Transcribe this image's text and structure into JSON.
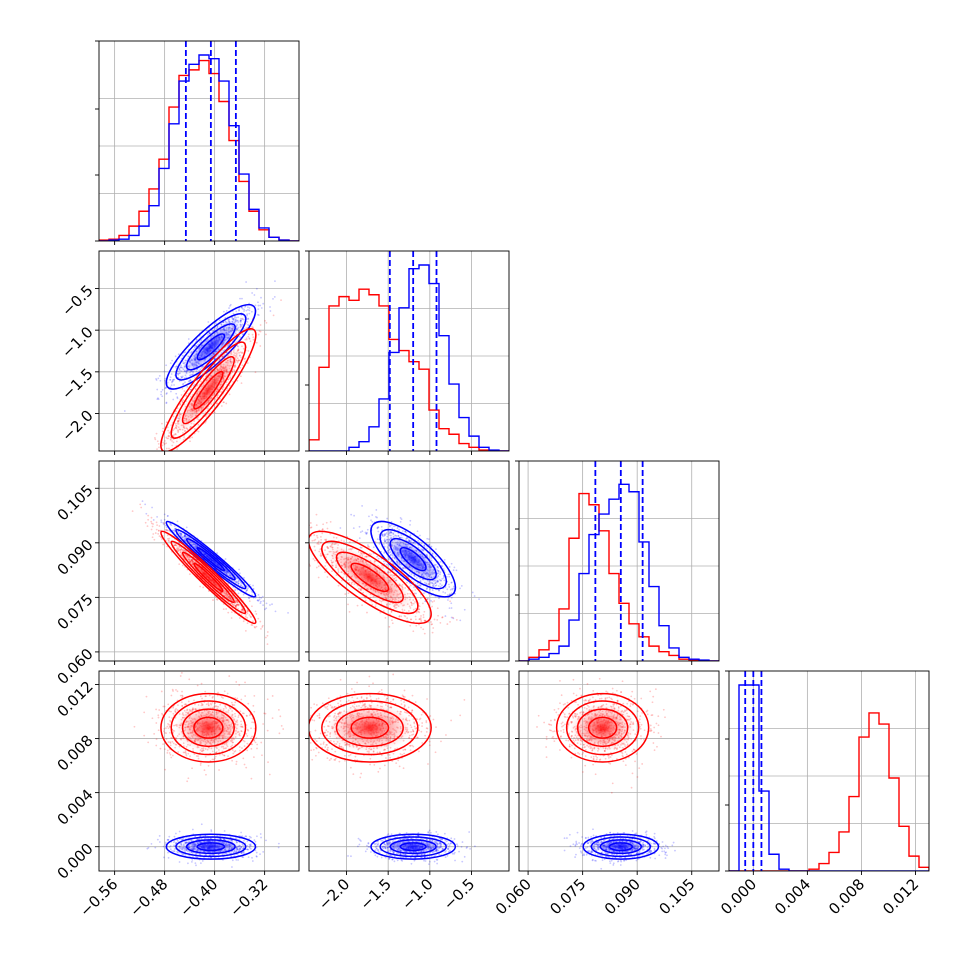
{
  "chart_data": {
    "type": "corner",
    "grid": true,
    "series": [
      {
        "color": "#0000ff"
      },
      {
        "color": "#ff0000"
      }
    ],
    "parameters": [
      {
        "range": [
          -0.585,
          -0.265
        ],
        "ticks": [
          -0.56,
          -0.48,
          -0.4,
          -0.32
        ],
        "tick_labels": [
          "−0.56",
          "−0.48",
          "−0.40",
          "−0.32"
        ],
        "quantiles": [
          -0.446,
          -0.406,
          -0.366
        ],
        "hist": {
          "bins": [
            -0.585,
            -0.569,
            -0.553,
            -0.537,
            -0.521,
            -0.505,
            -0.489,
            -0.473,
            -0.457,
            -0.441,
            -0.425,
            -0.409,
            -0.393,
            -0.377,
            -0.361,
            -0.345,
            -0.329,
            -0.313,
            -0.297,
            -0.281,
            -0.265
          ],
          "blue": [
            0.0,
            0.005,
            0.01,
            0.03,
            0.08,
            0.19,
            0.39,
            0.63,
            0.86,
            0.95,
            1.0,
            0.98,
            0.86,
            0.62,
            0.36,
            0.17,
            0.07,
            0.02,
            0.005,
            0.0
          ],
          "red": [
            0.005,
            0.01,
            0.03,
            0.08,
            0.16,
            0.28,
            0.44,
            0.72,
            0.89,
            0.92,
            0.97,
            0.9,
            0.75,
            0.54,
            0.32,
            0.16,
            0.06,
            0.02,
            0.005,
            0.0
          ]
        }
      },
      {
        "range": [
          -2.45,
          -0.05
        ],
        "ticks": [
          -2.0,
          -1.5,
          -1.0,
          -0.5
        ],
        "tick_labels": [
          "−2.0",
          "−1.5",
          "−1.0",
          "−0.5"
        ],
        "quantiles": [
          -1.48,
          -1.2,
          -0.92
        ],
        "hist": {
          "bins": [
            -2.45,
            -2.33,
            -2.21,
            -2.09,
            -1.97,
            -1.85,
            -1.73,
            -1.61,
            -1.49,
            -1.37,
            -1.25,
            -1.13,
            -1.01,
            -0.89,
            -0.77,
            -0.65,
            -0.53,
            -0.41,
            -0.29,
            -0.17,
            -0.05
          ],
          "blue": [
            0.0,
            0.0,
            0.0,
            0.0,
            0.02,
            0.05,
            0.13,
            0.28,
            0.53,
            0.77,
            0.98,
            1.0,
            0.9,
            0.62,
            0.36,
            0.18,
            0.08,
            0.02,
            0.005,
            0.0
          ],
          "red": [
            0.06,
            0.45,
            0.78,
            0.83,
            0.81,
            0.87,
            0.84,
            0.78,
            0.6,
            0.54,
            0.48,
            0.44,
            0.22,
            0.12,
            0.09,
            0.04,
            0.02,
            0.005,
            0.0,
            0.0
          ]
        }
      },
      {
        "range": [
          0.0575,
          0.1125
        ],
        "ticks": [
          0.06,
          0.075,
          0.09,
          0.105
        ],
        "tick_labels": [
          "0.060",
          "0.075",
          "0.090",
          "0.105"
        ],
        "quantiles": [
          0.0785,
          0.0855,
          0.0915
        ],
        "hist": {
          "bins": [
            0.0575,
            0.06025,
            0.063,
            0.06575,
            0.0685,
            0.07125,
            0.074,
            0.07675,
            0.0795,
            0.08225,
            0.085,
            0.08775,
            0.0905,
            0.09325,
            0.096,
            0.09875,
            0.1015,
            0.10425,
            0.107,
            0.10975,
            0.1125
          ],
          "blue": [
            0.0,
            0.01,
            0.02,
            0.04,
            0.08,
            0.22,
            0.47,
            0.68,
            0.79,
            0.87,
            0.95,
            0.91,
            0.64,
            0.4,
            0.19,
            0.07,
            0.02,
            0.01,
            0.005,
            0.0
          ],
          "red": [
            0.0,
            0.02,
            0.06,
            0.11,
            0.28,
            0.66,
            0.9,
            0.84,
            0.7,
            0.47,
            0.31,
            0.2,
            0.13,
            0.08,
            0.05,
            0.03,
            0.01,
            0.005,
            0.0,
            0.0
          ]
        }
      },
      {
        "range": [
          -0.0018,
          0.013
        ],
        "ticks": [
          0.0,
          0.004,
          0.008,
          0.012
        ],
        "tick_labels": [
          "0.000",
          "0.004",
          "0.008",
          "0.012"
        ],
        "quantiles": [
          -0.0006,
          0.0,
          0.0006
        ],
        "hist": {
          "bins": [
            -0.0018,
            -0.00106,
            -0.00032,
            0.00042,
            0.00116,
            0.0019,
            0.00264,
            0.00338,
            0.00412,
            0.00486,
            0.0056,
            0.00634,
            0.00708,
            0.00782,
            0.00856,
            0.0093,
            0.01004,
            0.01078,
            0.01152,
            0.01226,
            0.013
          ],
          "blue": [
            0.0,
            1.0,
            1.0,
            0.43,
            0.09,
            0.01,
            0.0,
            0.0,
            0.0,
            0.0,
            0.0,
            0.0,
            0.0,
            0.0,
            0.0,
            0.0,
            0.0,
            0.0,
            0.0,
            0.0
          ],
          "red": [
            0.0,
            0.0,
            0.0,
            0.0,
            0.0,
            0.0,
            0.0,
            0.0,
            0.01,
            0.04,
            0.1,
            0.21,
            0.4,
            0.72,
            0.85,
            0.79,
            0.5,
            0.24,
            0.08,
            0.02
          ]
        }
      }
    ],
    "posteriors": {
      "blue": {
        "mean": [
          -0.406,
          -1.2,
          0.0855,
          0.0
        ],
        "sd": [
          0.031,
          0.22,
          0.0045,
          0.0004
        ],
        "corr": [
          [
            1.0,
            0.85,
            -0.97,
            0.0
          ],
          [
            0.85,
            1.0,
            -0.75,
            0.0
          ],
          [
            -0.97,
            -0.75,
            1.0,
            0.0
          ],
          [
            0.0,
            0.0,
            0.0,
            1.0
          ]
        ]
      },
      "red": {
        "mean": [
          -0.41,
          -1.72,
          0.0805,
          0.0088
        ],
        "sd": [
          0.033,
          0.32,
          0.0055,
          0.0011
        ],
        "corr": [
          [
            1.0,
            0.9,
            -0.97,
            0.0
          ],
          [
            0.9,
            1.0,
            -0.8,
            0.0
          ],
          [
            -0.97,
            -0.8,
            1.0,
            0.0
          ],
          [
            0.0,
            0.0,
            0.0,
            1.0
          ]
        ]
      }
    }
  }
}
